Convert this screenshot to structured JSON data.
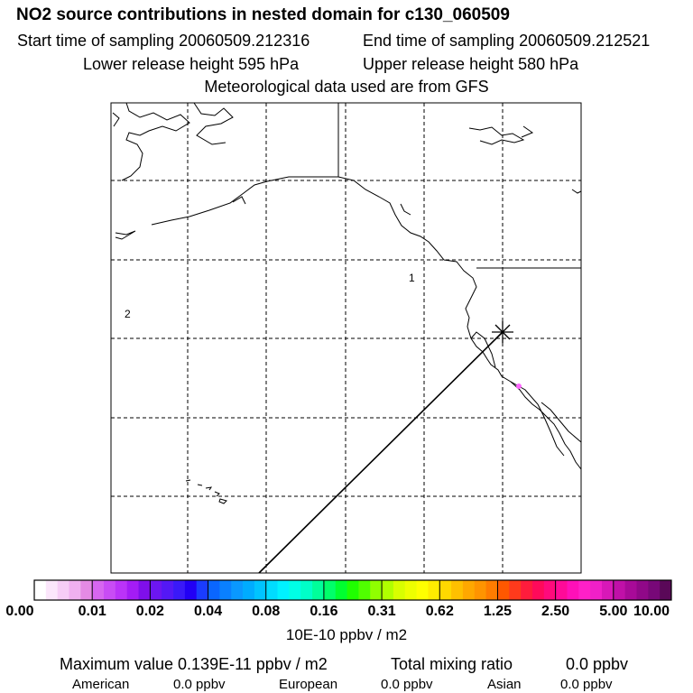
{
  "header": {
    "title": "NO2 source contributions in nested domain for c130_060509",
    "start_time": "Start time of sampling 20060509.212316",
    "end_time": "End time of sampling 20060509.212521",
    "lower_release": "Lower release height  595 hPa",
    "upper_release": "Upper release height  580 hPa",
    "met_data": "Meteorological data used are from GFS"
  },
  "map": {
    "region_labels": [
      "1",
      "2"
    ],
    "colors": {
      "frame": "#000000",
      "grid": "#000000",
      "plume": "#ff66ff"
    }
  },
  "colorbar": {
    "tick_labels": [
      "0.00",
      "0.01",
      "0.02",
      "0.04",
      "0.08",
      "0.16",
      "0.31",
      "0.62",
      "1.25",
      "2.50",
      "5.00",
      "10.00"
    ],
    "colors": [
      "#ffffff",
      "#fbe6fb",
      "#f6cdf6",
      "#f0b0f0",
      "#e58ae5",
      "#d766f0",
      "#c94cf5",
      "#bb33f8",
      "#a41cf5",
      "#7f0fea",
      "#6c16f0",
      "#5418f5",
      "#3a19f8",
      "#2200f5",
      "#1a3cff",
      "#0a66ff",
      "#0a80ff",
      "#0a98ff",
      "#00acff",
      "#00c4ff",
      "#00dcff",
      "#00f2ff",
      "#00ffe6",
      "#00ffc8",
      "#00ff9a",
      "#00ff6a",
      "#00ff30",
      "#20ff00",
      "#50ff00",
      "#90ff00",
      "#b0ff00",
      "#d8ff00",
      "#eeff00",
      "#ffff00",
      "#ffec00",
      "#ffd800",
      "#ffc000",
      "#ffa800",
      "#ff9400",
      "#ff7c00",
      "#ff5800",
      "#ff3a1c",
      "#ff1c3c",
      "#ff0a5a",
      "#ff0a7c",
      "#ff0a98",
      "#ff10b8",
      "#ff20c8",
      "#f020c8",
      "#d818b8",
      "#c010a8",
      "#a80a98",
      "#900888",
      "#780878",
      "#5a0858"
    ],
    "unit": "10E-10 ppbv / m2"
  },
  "summary": {
    "max_value": "Maximum value  0.139E-11 ppbv / m2",
    "total_label": "Total mixing ratio",
    "total_value": "0.0 ppbv",
    "sources": [
      {
        "name": "American",
        "value": "0.0 ppbv"
      },
      {
        "name": "European",
        "value": "0.0 ppbv"
      },
      {
        "name": "Asian",
        "value": "0.0 ppbv"
      }
    ]
  }
}
